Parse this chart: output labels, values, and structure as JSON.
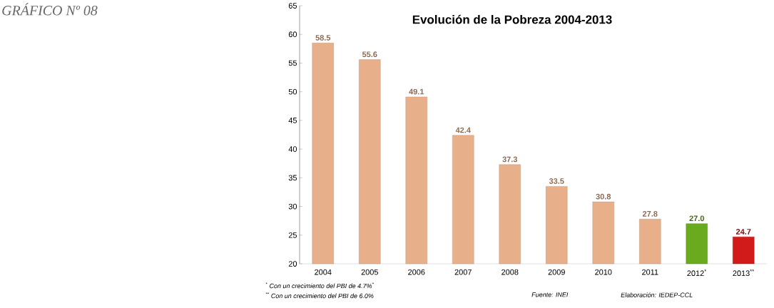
{
  "chart_data": {
    "type": "bar",
    "title": "Evolución de la Pobreza 2004-2013",
    "categories": [
      "2004",
      "2005",
      "2006",
      "2007",
      "2008",
      "2009",
      "2010",
      "2011",
      "2012$^{*}$",
      "2013$^{**}$"
    ],
    "values": [
      58.5,
      55.6,
      49.1,
      42.4,
      37.3,
      33.5,
      30.8,
      27.8,
      27.0,
      24.7
    ],
    "colors": [
      "#e8b08a",
      "#e8b08a",
      "#e8b08a",
      "#e8b08a",
      "#e8b08a",
      "#e8b08a",
      "#e8b08a",
      "#e8b08a",
      "#6aaa1e",
      "#d11a1a"
    ],
    "value_labels": [
      "58.5",
      "55.6",
      "49.1",
      "42.4",
      "37.3",
      "33.5",
      "30.8",
      "27.8",
      "27.0",
      "24.7"
    ],
    "ylim": [
      20,
      65
    ],
    "yticks": [
      20,
      25,
      30,
      35,
      40,
      45,
      50,
      55,
      60,
      65
    ],
    "annotations": [
      "GRÁFICO Nº 08",
      "$^{*}$ Con un crecimiento del PBI de 4.7%$^{*}$",
      "$^{**}$ Con un crecimiento del PBI de 6.0%",
      "Fuente: INEI",
      "Elaboración: IEDEP-CCL"
    ]
  }
}
